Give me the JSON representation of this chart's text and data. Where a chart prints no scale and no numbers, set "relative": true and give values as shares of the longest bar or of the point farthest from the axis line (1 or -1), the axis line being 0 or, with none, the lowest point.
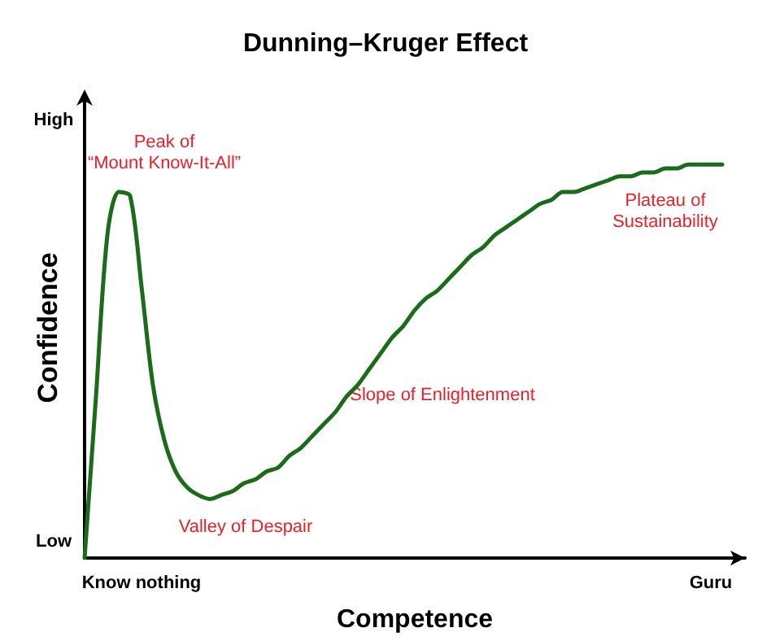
{
  "chart_data": {
    "type": "line",
    "title": "Dunning–Kruger Effect",
    "xlabel": "Competence",
    "ylabel": "Confidence",
    "relative": true,
    "categories": [
      null,
      null,
      null,
      null,
      null,
      "Know nothing",
      null,
      null,
      null,
      null,
      null,
      null,
      null,
      null,
      null,
      null,
      null,
      null,
      null,
      null,
      null,
      null,
      null,
      null,
      null,
      null,
      null,
      null,
      null,
      null,
      null,
      null,
      null,
      null,
      null,
      null,
      null,
      null,
      null,
      null,
      null,
      null,
      null,
      null,
      null,
      null,
      null,
      null,
      null,
      null,
      null,
      null,
      null,
      null,
      null,
      "Guru",
      null,
      null,
      null
    ],
    "grid": false,
    "marker": "none",
    "line_style": "solid",
    "series": [
      {
        "color": "#1a6b1a",
        "values": [
          0,
          0.41,
          0.82,
          0.93,
          0.92,
          0.69,
          0.44,
          0.3,
          0.22,
          0.18,
          0.16,
          0.15,
          0.16,
          0.17,
          0.19,
          0.2,
          0.22,
          0.23,
          0.26,
          0.28,
          0.31,
          0.34,
          0.37,
          0.41,
          0.44,
          0.48,
          0.52,
          0.56,
          0.59,
          0.63,
          0.66,
          0.68,
          0.71,
          0.74,
          0.77,
          0.79,
          0.82,
          0.84,
          0.86,
          0.88,
          0.9,
          0.91,
          0.93,
          0.93,
          0.94,
          0.95,
          0.96,
          0.97,
          0.97,
          0.98,
          0.98,
          0.99,
          0.99,
          1,
          1,
          1,
          1,
          null,
          null
        ]
      }
    ],
    "annotations": [
      "Peak of\n“Mount Know-It-All”",
      "Valley of Despair",
      "Slope of Enlightenment",
      "Plateau of\nSustainability",
      "High",
      "Low"
    ]
  }
}
